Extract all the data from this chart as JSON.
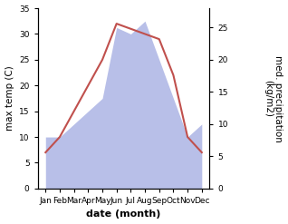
{
  "months": [
    "Jan",
    "Feb",
    "Mar",
    "Apr",
    "May",
    "Jun",
    "Jul",
    "Aug",
    "Sep",
    "Oct",
    "Nov",
    "Dec"
  ],
  "temperature": [
    7,
    10,
    15,
    20,
    25,
    32,
    31,
    30,
    29,
    22,
    10,
    7
  ],
  "precipitation": [
    8,
    8,
    10,
    12,
    14,
    25,
    24,
    26,
    20,
    14,
    8,
    10
  ],
  "temp_color": "#c0504d",
  "precip_fill_color": "#b8bfe8",
  "temp_ylim": [
    0,
    35
  ],
  "precip_ylim": [
    0,
    28
  ],
  "temp_yticks": [
    0,
    5,
    10,
    15,
    20,
    25,
    30,
    35
  ],
  "precip_yticks": [
    0,
    5,
    10,
    15,
    20,
    25
  ],
  "xlabel": "date (month)",
  "ylabel_left": "max temp (C)",
  "ylabel_right": "med. precipitation\n(kg/m2)",
  "axis_fontsize": 7.5,
  "tick_fontsize": 6.5,
  "label_fontsize": 8,
  "bg_color": "#ffffff",
  "figsize": [
    3.18,
    2.47
  ],
  "dpi": 100
}
